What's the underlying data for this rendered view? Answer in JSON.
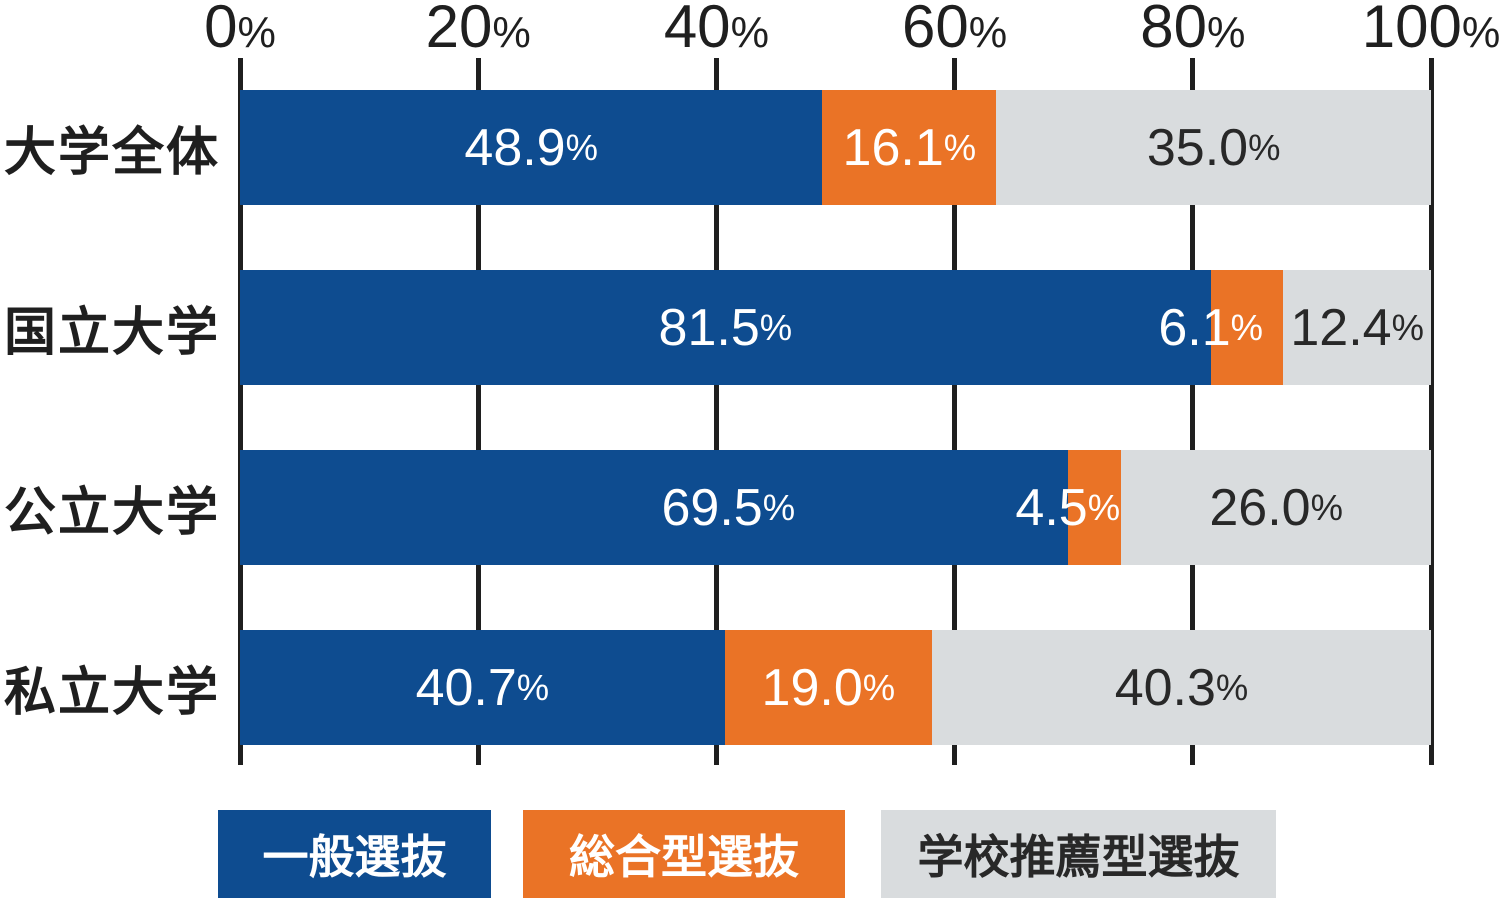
{
  "chart_data": {
    "type": "bar",
    "orientation": "horizontal",
    "stacked": true,
    "unit": "%",
    "categories": [
      "大学全体",
      "国立大学",
      "公立大学",
      "私立大学"
    ],
    "series": [
      {
        "name": "一般選抜",
        "color": "#0E4C90",
        "label_color": "#FFFFFF",
        "values": [
          48.9,
          81.5,
          69.5,
          40.7
        ]
      },
      {
        "name": "総合型選抜",
        "color": "#EA7326",
        "label_color": "#FFFFFF",
        "values": [
          16.1,
          6.1,
          4.5,
          19.0
        ]
      },
      {
        "name": "学校推薦型選抜",
        "color": "#D9DCDE",
        "label_color": "#282828",
        "values": [
          35.0,
          12.4,
          26.0,
          40.3
        ]
      }
    ],
    "x_ticks": [
      "0%",
      "20%",
      "40%",
      "60%",
      "80%",
      "100%"
    ],
    "xlim": [
      0,
      100
    ],
    "grid": true,
    "legend_position": "bottom",
    "label_overrides": [
      {
        "row": 1,
        "series": 1,
        "anchor": "segment-start"
      },
      {
        "row": 2,
        "series": 1,
        "anchor": "segment-start"
      },
      {
        "row": 2,
        "series": 0,
        "center_pct": 41.0
      }
    ],
    "drawn_width_overrides": [
      {
        "row": 0,
        "series": 1,
        "width_pct": 14.6
      },
      {
        "row": 3,
        "series": 1,
        "width_pct": 17.4
      }
    ],
    "colors": {
      "axis": "#1F1F1F",
      "tick_text": "#1F1F1F",
      "category_text": "#1F1F1F",
      "background": "#FFFFFF"
    }
  }
}
